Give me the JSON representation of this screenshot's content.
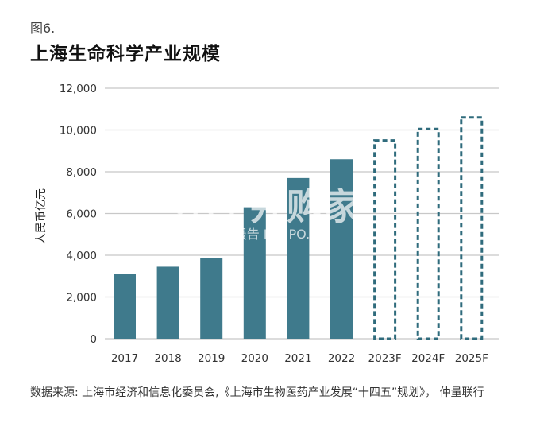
{
  "figure_label": "图6.",
  "title": "上海生命科学产业规模",
  "watermark": {
    "main": "小丨并购家",
    "sub": "行业报告 IPOIPO.CN"
  },
  "source": "数据来源: 上海市经济和信息化委员会,《上海市生物医药产业发展“十四五”规划》， 仲量联行",
  "colors": {
    "bar": "#3f7a8c",
    "forecast_outline": "#2f6b7c",
    "grid": "#c8c8c8"
  },
  "chart_data": {
    "type": "bar",
    "categories": [
      "2017",
      "2018",
      "2019",
      "2020",
      "2021",
      "2022",
      "2023F",
      "2024F",
      "2025F"
    ],
    "values": [
      3100,
      3450,
      3850,
      6300,
      7700,
      8600,
      9500,
      10050,
      10600
    ],
    "forecast": [
      false,
      false,
      false,
      false,
      false,
      false,
      true,
      true,
      true
    ],
    "ylabel": "人民币亿元",
    "ylim": [
      0,
      12000
    ],
    "yticks": [
      0,
      2000,
      4000,
      6000,
      8000,
      10000,
      12000
    ],
    "ytick_labels": [
      "0",
      "2,000",
      "4,000",
      "6,000",
      "8,000",
      "10,000",
      "12,000"
    ],
    "grid": true,
    "legend": "none"
  }
}
